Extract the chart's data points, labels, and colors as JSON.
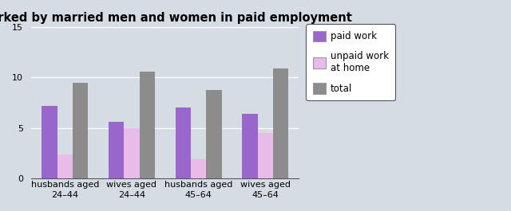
{
  "title": "Hours worked by married men and women in paid employment",
  "categories": [
    "husbands aged\n24–44",
    "wives aged\n24–44",
    "husbands aged\n45–64",
    "wives aged\n45–64"
  ],
  "series": {
    "paid_work": [
      7.2,
      5.6,
      7.0,
      6.4
    ],
    "unpaid_work": [
      2.4,
      5.0,
      1.9,
      4.5
    ],
    "total": [
      9.5,
      10.6,
      8.8,
      10.9
    ]
  },
  "colors": {
    "paid_work": "#9966cc",
    "unpaid_work": "#e8bbe8",
    "total": "#8c8c8c"
  },
  "legend_labels": [
    "paid work",
    "unpaid work\nat home",
    "total"
  ],
  "ylim": [
    0,
    15
  ],
  "yticks": [
    0,
    5,
    10,
    15
  ],
  "bar_width": 0.23,
  "title_fontsize": 10.5,
  "tick_fontsize": 8,
  "legend_fontsize": 8.5,
  "background_color": "#d6dce4"
}
